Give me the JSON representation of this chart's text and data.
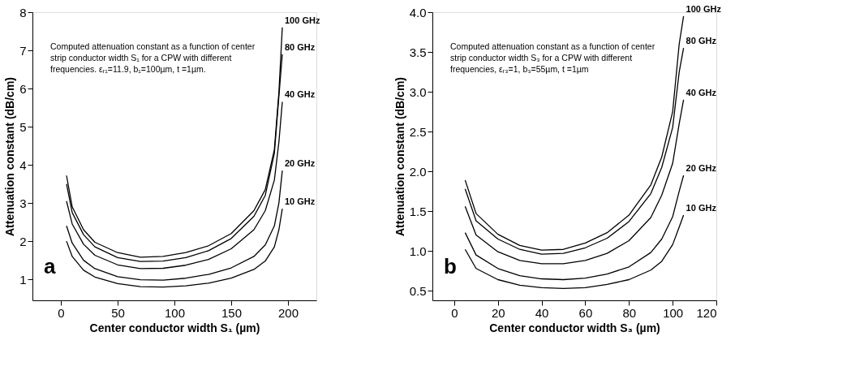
{
  "chart_data": [
    {
      "type": "line",
      "xlabel": "Center conductor width S₁ (µm)",
      "ylabel": "Attenuation constant (dB/cm)",
      "xlim": [
        -25,
        225
      ],
      "xticks": [
        0,
        50,
        100,
        150,
        200
      ],
      "ylim": [
        0.45,
        8
      ],
      "yticks": [
        1,
        2,
        3,
        4,
        5,
        6,
        7,
        8
      ],
      "grid": false,
      "marker": "none",
      "line_style": "solid",
      "x": [
        5,
        10,
        20,
        30,
        50,
        70,
        90,
        110,
        130,
        150,
        170,
        180,
        188,
        192,
        195
      ],
      "annotations": [
        "Computed attenuation constant as a function of center\nstrip conductor width S₁ for a CPW with different\nfrequencies. εᵣ₁=11.9, b₁=100µm, t =1µm.",
        "a"
      ],
      "series": [
        {
          "name": "100 GHz",
          "color": "#000000",
          "values": [
            3.72,
            2.9,
            2.3,
            1.97,
            1.7,
            1.58,
            1.6,
            1.7,
            1.88,
            2.2,
            2.8,
            3.35,
            4.4,
            5.9,
            7.6
          ]
        },
        {
          "name": "80 GHz",
          "color": "#000000",
          "values": [
            3.5,
            2.75,
            2.17,
            1.85,
            1.57,
            1.47,
            1.48,
            1.57,
            1.75,
            2.07,
            2.65,
            3.2,
            4.3,
            5.8,
            6.9
          ]
        },
        {
          "name": "40 GHz",
          "color": "#000000",
          "values": [
            3.05,
            2.45,
            1.92,
            1.63,
            1.38,
            1.28,
            1.29,
            1.37,
            1.52,
            1.8,
            2.3,
            2.8,
            3.6,
            4.6,
            5.65
          ]
        },
        {
          "name": "20 GHz",
          "color": "#000000",
          "values": [
            2.4,
            1.95,
            1.5,
            1.28,
            1.07,
            0.99,
            0.98,
            1.03,
            1.13,
            1.3,
            1.6,
            1.9,
            2.4,
            3.0,
            3.85
          ]
        },
        {
          "name": "10 GHz",
          "color": "#000000",
          "values": [
            2.0,
            1.6,
            1.24,
            1.06,
            0.89,
            0.81,
            0.8,
            0.83,
            0.9,
            1.03,
            1.26,
            1.48,
            1.85,
            2.3,
            2.85
          ]
        }
      ]
    },
    {
      "type": "line",
      "xlabel": "Center conductor width S₃ (µm)",
      "ylabel": "Attenuation constant (dB/cm)",
      "xlim": [
        -10,
        120
      ],
      "xticks": [
        0,
        20,
        40,
        60,
        80,
        100,
        120
      ],
      "ylim": [
        0.38,
        4.0
      ],
      "yticks": [
        0.5,
        {
          "value": 1,
          "label": "1.0"
        },
        1.5,
        {
          "value": 2,
          "label": "2.0"
        },
        2.5,
        {
          "value": 3,
          "label": "3.0"
        },
        3.5,
        {
          "value": 4,
          "label": "4.0"
        }
      ],
      "grid": false,
      "marker": "none",
      "line_style": "solid",
      "x": [
        5,
        10,
        20,
        30,
        40,
        50,
        60,
        70,
        80,
        90,
        95,
        100,
        103,
        105
      ],
      "annotations": [
        "Computed attenuation constant as a function of center\nstrip conductor width S₃ for a CPW with different\nfrequencies, εᵣ₃=1, b₃=55µm, t =1µm",
        "b"
      ],
      "series": [
        {
          "name": "100 GHz",
          "color": "#000000",
          "values": [
            1.89,
            1.47,
            1.21,
            1.07,
            1.01,
            1.02,
            1.1,
            1.23,
            1.45,
            1.83,
            2.18,
            2.75,
            3.6,
            3.95
          ]
        },
        {
          "name": "80 GHz",
          "color": "#000000",
          "values": [
            1.78,
            1.38,
            1.15,
            1.02,
            0.96,
            0.97,
            1.04,
            1.16,
            1.37,
            1.72,
            2.05,
            2.55,
            3.25,
            3.55
          ]
        },
        {
          "name": "40 GHz",
          "color": "#000000",
          "values": [
            1.56,
            1.2,
            0.99,
            0.88,
            0.84,
            0.84,
            0.88,
            0.97,
            1.13,
            1.42,
            1.7,
            2.1,
            2.6,
            2.9
          ]
        },
        {
          "name": "20 GHz",
          "color": "#000000",
          "values": [
            1.23,
            0.95,
            0.78,
            0.69,
            0.65,
            0.64,
            0.66,
            0.71,
            0.8,
            0.98,
            1.15,
            1.43,
            1.75,
            1.95
          ]
        },
        {
          "name": "10 GHz",
          "color": "#000000",
          "values": [
            1.02,
            0.78,
            0.64,
            0.57,
            0.54,
            0.53,
            0.54,
            0.58,
            0.64,
            0.76,
            0.87,
            1.08,
            1.3,
            1.45
          ]
        }
      ]
    }
  ]
}
